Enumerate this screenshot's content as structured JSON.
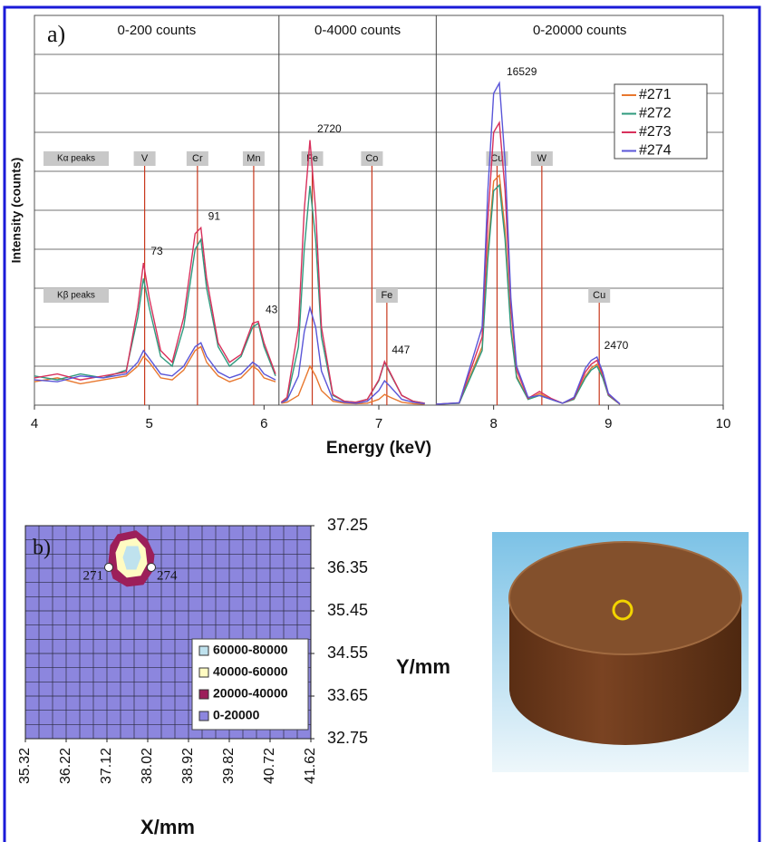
{
  "chart_data": [
    {
      "type": "line",
      "panel_label": "a)",
      "xlabel": "Energy (keV)",
      "ylabel": "Intensity (counts)",
      "xlim": [
        4,
        10
      ],
      "xticks": [
        4,
        5,
        6,
        7,
        8,
        9,
        10
      ],
      "series": [
        {
          "name": "#271",
          "color": "#e8772e"
        },
        {
          "name": "#272",
          "color": "#2f9a7e"
        },
        {
          "name": "#273",
          "color": "#d8305c"
        },
        {
          "name": "#274",
          "color": "#5a56d8"
        }
      ],
      "legend": "upper right",
      "panels": [
        {
          "title": "0-200 counts",
          "xlim": [
            4,
            6.13
          ],
          "ylim": [
            0,
            200
          ],
          "x": [
            4.0,
            4.2,
            4.4,
            4.6,
            4.8,
            4.9,
            4.95,
            5.0,
            5.1,
            5.2,
            5.3,
            5.4,
            5.45,
            5.5,
            5.6,
            5.7,
            5.8,
            5.9,
            5.95,
            6.0,
            6.1
          ],
          "values": [
            [
              12,
              14,
              11,
              13,
              15,
              20,
              25,
              22,
              14,
              13,
              18,
              28,
              30,
              22,
              15,
              12,
              14,
              20,
              18,
              14,
              12
            ],
            [
              15,
              13,
              16,
              14,
              18,
              45,
              65,
              50,
              25,
              20,
              40,
              80,
              85,
              60,
              30,
              20,
              25,
              40,
              42,
              30,
              15
            ],
            [
              14,
              16,
              13,
              15,
              17,
              50,
              73,
              55,
              28,
              22,
              45,
              88,
              91,
              65,
              32,
              22,
              26,
              42,
              43,
              32,
              16
            ],
            [
              13,
              12,
              15,
              14,
              16,
              22,
              28,
              24,
              16,
              15,
              20,
              30,
              32,
              25,
              17,
              14,
              16,
              22,
              20,
              16,
              13
            ]
          ],
          "value_labels": [
            null,
            null,
            [
              null,
              null,
              null,
              null,
              null,
              null,
              "73",
              null,
              null,
              null,
              null,
              null,
              "91",
              null,
              null,
              null,
              null,
              null,
              "43",
              null,
              null
            ],
            null
          ]
        },
        {
          "title": "0-4000 counts",
          "xlim": [
            6.13,
            7.5
          ],
          "ylim": [
            0,
            4000
          ],
          "x": [
            6.15,
            6.2,
            6.3,
            6.35,
            6.4,
            6.45,
            6.5,
            6.6,
            6.7,
            6.8,
            6.9,
            7.0,
            7.05,
            7.1,
            7.2,
            7.3,
            7.4
          ],
          "values": [
            [
              20,
              30,
              100,
              250,
              400,
              300,
              150,
              40,
              20,
              15,
              20,
              60,
              110,
              80,
              30,
              15,
              10
            ],
            [
              30,
              60,
              600,
              1600,
              2250,
              1700,
              700,
              100,
              40,
              30,
              60,
              250,
              440,
              320,
              100,
              40,
              20
            ],
            [
              30,
              80,
              800,
              2000,
              2720,
              2000,
              800,
              110,
              40,
              30,
              60,
              260,
              447,
              330,
              100,
              40,
              20
            ],
            [
              25,
              50,
              300,
              750,
              1000,
              800,
              350,
              60,
              30,
              20,
              40,
              150,
              250,
              190,
              60,
              30,
              15
            ]
          ],
          "value_labels": [
            null,
            null,
            [
              null,
              null,
              null,
              null,
              "2720",
              null,
              null,
              null,
              null,
              null,
              null,
              null,
              "447",
              null,
              null,
              null,
              null
            ],
            null
          ]
        },
        {
          "title": "0-20000 counts",
          "xlim": [
            7.5,
            10
          ],
          "ylim": [
            0,
            20000
          ],
          "x": [
            7.5,
            7.7,
            7.9,
            7.95,
            8.0,
            8.05,
            8.1,
            8.15,
            8.2,
            8.3,
            8.4,
            8.5,
            8.6,
            8.7,
            8.8,
            8.85,
            8.9,
            8.95,
            9.0,
            9.1
          ],
          "values": [
            [
              50,
              100,
              3000,
              8000,
              11500,
              11800,
              9000,
              4000,
              1500,
              300,
              600,
              300,
              100,
              300,
              1500,
              1900,
              2100,
              1500,
              500,
              50
            ],
            [
              50,
              100,
              2800,
              7500,
              11000,
              11300,
              8500,
              3800,
              1400,
              300,
              500,
              300,
              100,
              300,
              1400,
              1800,
              2000,
              1400,
              500,
              50
            ],
            [
              50,
              120,
              3500,
              9500,
              14000,
              14500,
              11000,
              5000,
              1800,
              350,
              700,
              350,
              100,
              350,
              1700,
              2100,
              2300,
              1600,
              550,
              50
            ],
            [
              50,
              120,
              4000,
              11000,
              16000,
              16529,
              12500,
              5500,
              2000,
              400,
              500,
              300,
              100,
              400,
              1900,
              2300,
              2470,
              1700,
              600,
              60
            ]
          ],
          "value_labels": [
            null,
            null,
            null,
            [
              null,
              null,
              null,
              null,
              null,
              "16529",
              null,
              null,
              null,
              null,
              null,
              null,
              null,
              null,
              null,
              null,
              "2470",
              null,
              null,
              null
            ]
          ]
        }
      ],
      "k_alpha": {
        "label": "Kα peaks",
        "labels": [
          "V",
          "Cr",
          "Mn",
          "Fe",
          "Co",
          "Cu",
          "W"
        ],
        "x": [
          4.96,
          5.42,
          5.91,
          6.42,
          6.94,
          8.03,
          8.42
        ]
      },
      "k_beta": {
        "label": "Kβ peaks",
        "labels": [
          "Fe",
          "Cu"
        ],
        "x": [
          7.07,
          8.92
        ]
      }
    },
    {
      "type": "contour",
      "panel_label": "b)",
      "xlabel": "X/mm",
      "ylabel": "Y/mm",
      "xlim": [
        35.32,
        41.62
      ],
      "xticks": [
        35.32,
        36.22,
        37.12,
        38.02,
        38.92,
        39.82,
        40.72,
        41.62
      ],
      "ylim": [
        32.75,
        37.25
      ],
      "yticks": [
        32.75,
        33.65,
        34.55,
        35.45,
        36.35,
        37.25
      ],
      "series": [
        {
          "name": "60000-80000",
          "color": "#bfe2ee",
          "x": [
            37.56,
            37.8,
            37.86,
            37.76,
            37.56,
            37.48
          ],
          "y": [
            36.81,
            36.81,
            36.58,
            36.33,
            36.33,
            36.58
          ]
        },
        {
          "name": "40000-60000",
          "color": "#fffbc2",
          "x": [
            37.42,
            37.76,
            37.96,
            38.0,
            37.86,
            37.56,
            37.36,
            37.32
          ],
          "y": [
            36.91,
            36.98,
            36.77,
            36.45,
            36.2,
            36.16,
            36.33,
            36.68
          ]
        },
        {
          "name": "20000-40000",
          "color": "#9c1f5a",
          "x": [
            37.36,
            37.76,
            38.0,
            38.16,
            38.12,
            37.92,
            37.56,
            37.26,
            37.16,
            37.2
          ],
          "y": [
            37.06,
            37.14,
            36.96,
            36.63,
            36.29,
            36.01,
            35.97,
            36.14,
            36.48,
            36.83
          ]
        },
        {
          "name": "0-20000",
          "color": "#8c86de"
        }
      ],
      "points": {
        "labels": [
          "271",
          "274"
        ],
        "x": [
          37.16,
          38.1
        ],
        "y": [
          36.37,
          36.37
        ]
      }
    }
  ]
}
